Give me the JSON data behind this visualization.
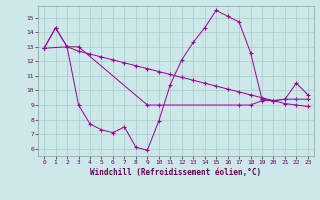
{
  "xlabel": "Windchill (Refroidissement éolien,°C)",
  "bg_color": "#cce8e8",
  "grid_color": "#b0d0d0",
  "line_color": "#990099",
  "xlim": [
    -0.5,
    23.5
  ],
  "ylim": [
    5.5,
    15.8
  ],
  "yticks": [
    6,
    7,
    8,
    9,
    10,
    11,
    12,
    13,
    14,
    15
  ],
  "xticks": [
    0,
    1,
    2,
    3,
    4,
    5,
    6,
    7,
    8,
    9,
    10,
    11,
    12,
    13,
    14,
    15,
    16,
    17,
    18,
    19,
    20,
    21,
    22,
    23
  ],
  "series1_x": [
    0,
    1,
    2,
    3,
    4,
    5,
    6,
    7,
    8,
    9,
    10,
    11,
    12,
    13,
    14,
    15,
    16,
    17,
    18,
    19,
    20,
    21,
    22,
    23
  ],
  "series1_y": [
    12.9,
    14.3,
    13.0,
    9.0,
    7.7,
    7.3,
    7.1,
    7.5,
    6.1,
    5.9,
    7.9,
    10.4,
    12.1,
    13.3,
    14.3,
    15.5,
    15.1,
    14.7,
    12.6,
    9.4,
    9.3,
    9.4,
    10.5,
    9.7
  ],
  "series2_x": [
    0,
    2,
    3,
    9,
    10,
    17,
    18,
    19,
    20,
    21,
    22,
    23
  ],
  "series2_y": [
    12.9,
    13.0,
    13.0,
    9.0,
    9.0,
    9.0,
    9.0,
    9.3,
    9.3,
    9.4,
    9.4,
    9.4
  ],
  "series3_x": [
    0,
    1,
    2,
    3,
    4,
    5,
    6,
    7,
    8,
    9,
    10,
    11,
    12,
    13,
    14,
    15,
    16,
    17,
    18,
    19,
    20,
    21,
    22,
    23
  ],
  "series3_y": [
    12.9,
    14.3,
    13.0,
    12.7,
    12.5,
    12.3,
    12.1,
    11.9,
    11.7,
    11.5,
    11.3,
    11.1,
    10.9,
    10.7,
    10.5,
    10.3,
    10.1,
    9.9,
    9.7,
    9.5,
    9.3,
    9.1,
    9.0,
    8.9
  ]
}
